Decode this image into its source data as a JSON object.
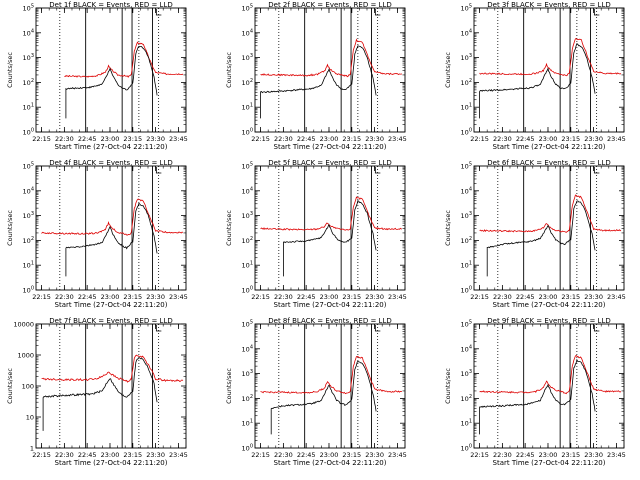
{
  "figure": {
    "background": "#ffffff",
    "colors": {
      "events": "#000000",
      "lld": "#dd0000",
      "axis": "#000000"
    }
  },
  "common": {
    "xlabel": "Start Time (27-Oct-04 22:11:20)",
    "ylabel": "Counts/sec",
    "xticks": [
      "22:15",
      "22:30",
      "22:45",
      "23:00",
      "23:15",
      "23:30",
      "23:45"
    ]
  },
  "chart_data": [
    {
      "type": "line",
      "title": "Det 1f BLACK = Events, RED = LLD",
      "ylabel": "Counts/sec",
      "xlabel": "Start Time (27-Oct-04 22:11:20)",
      "yscale": "log",
      "ylim": [
        1,
        100000
      ],
      "ytick_labels": [
        "10^0",
        "10^1",
        "10^2",
        "10^3",
        "10^4",
        "10^5"
      ],
      "xlim": [
        "22:11:20",
        "23:50:00"
      ],
      "series": [
        {
          "color": "red",
          "values_x": [
            "22:30",
            "22:45",
            "22:52",
            "22:57",
            "22:59",
            "23:01",
            "23:05",
            "23:08",
            "23:10",
            "23:12",
            "23:14",
            "23:16",
            "23:18",
            "23:22",
            "23:27",
            "23:30",
            "23:37",
            "23:48"
          ],
          "values_y": [
            180,
            170,
            190,
            260,
            450,
            320,
            200,
            190,
            180,
            170,
            200,
            1800,
            4000,
            3500,
            600,
            250,
            220,
            220
          ]
        },
        {
          "color": "black",
          "values_x": [
            "22:31",
            "22:40",
            "22:48",
            "22:55",
            "22:58",
            "23:00",
            "23:02",
            "23:05",
            "23:08",
            "23:11",
            "23:15",
            "23:17",
            "23:19",
            "23:22",
            "23:25",
            "23:29",
            "23:31"
          ],
          "values_y": [
            55,
            60,
            65,
            85,
            200,
            340,
            180,
            85,
            60,
            50,
            90,
            1500,
            3000,
            2500,
            1200,
            160,
            30
          ]
        }
      ]
    },
    {
      "type": "line",
      "title": "Det 2f BLACK = Events, RED = LLD",
      "ylabel": "Counts/sec",
      "xlabel": "Start Time (27-Oct-04 22:11:20)",
      "yscale": "log",
      "ylim": [
        1,
        100000
      ],
      "ytick_labels": [
        "10^0",
        "10^1",
        "10^2",
        "10^3",
        "10^4",
        "10^5"
      ],
      "xlim": [
        "22:11:20",
        "23:50:00"
      ],
      "series": [
        {
          "color": "red",
          "values_x": [
            "22:15",
            "22:30",
            "22:45",
            "22:52",
            "22:57",
            "22:59",
            "23:01",
            "23:05",
            "23:08",
            "23:10",
            "23:12",
            "23:14",
            "23:16",
            "23:18",
            "23:22",
            "23:27",
            "23:30",
            "23:37",
            "23:48"
          ],
          "values_y": [
            210,
            200,
            190,
            210,
            280,
            500,
            330,
            220,
            200,
            190,
            180,
            210,
            2000,
            5000,
            4000,
            700,
            260,
            220,
            220
          ]
        },
        {
          "color": "black",
          "values_x": [
            "22:15",
            "22:30",
            "22:48",
            "22:55",
            "22:58",
            "23:00",
            "23:02",
            "23:05",
            "23:08",
            "23:11",
            "23:15",
            "23:17",
            "23:19",
            "23:22",
            "23:25",
            "23:29",
            "23:31"
          ],
          "values_y": [
            40,
            45,
            55,
            75,
            190,
            330,
            170,
            80,
            55,
            50,
            85,
            1400,
            3000,
            2500,
            1100,
            150,
            30
          ]
        }
      ]
    },
    {
      "type": "line",
      "title": "Det 3f BLACK = Events, RED = LLD",
      "ylabel": "Counts/sec",
      "xlabel": "Start Time (27-Oct-04 22:11:20)",
      "yscale": "log",
      "ylim": [
        1,
        100000
      ],
      "ytick_labels": [
        "10^0",
        "10^1",
        "10^2",
        "10^3",
        "10^4",
        "10^5"
      ],
      "xlim": [
        "22:11:20",
        "23:50:00"
      ],
      "series": [
        {
          "color": "red",
          "values_x": [
            "22:15",
            "22:30",
            "22:45",
            "22:52",
            "22:57",
            "22:59",
            "23:01",
            "23:05",
            "23:08",
            "23:10",
            "23:12",
            "23:14",
            "23:16",
            "23:18",
            "23:22",
            "23:27",
            "23:30",
            "23:37",
            "23:48"
          ],
          "values_y": [
            230,
            220,
            215,
            230,
            300,
            520,
            350,
            230,
            215,
            200,
            190,
            230,
            2200,
            6000,
            5000,
            800,
            280,
            230,
            230
          ]
        },
        {
          "color": "black",
          "values_x": [
            "22:15",
            "22:30",
            "22:48",
            "22:55",
            "22:58",
            "23:00",
            "23:02",
            "23:05",
            "23:08",
            "23:11",
            "23:15",
            "23:17",
            "23:19",
            "23:22",
            "23:25",
            "23:29",
            "23:31"
          ],
          "values_y": [
            45,
            50,
            60,
            80,
            200,
            350,
            180,
            85,
            60,
            55,
            90,
            1600,
            3500,
            2800,
            1200,
            160,
            35
          ]
        }
      ]
    },
    {
      "type": "line",
      "title": "Det 4f BLACK = Events, RED = LLD",
      "ylabel": "Counts/sec",
      "xlabel": "Start Time (27-Oct-04 22:11:20)",
      "yscale": "log",
      "ylim": [
        1,
        100000
      ],
      "ytick_labels": [
        "10^0",
        "10^1",
        "10^2",
        "10^3",
        "10^4",
        "10^5"
      ],
      "xlim": [
        "22:11:20",
        "23:50:00"
      ],
      "series": [
        {
          "color": "red",
          "values_x": [
            "22:15",
            "22:30",
            "22:45",
            "22:52",
            "22:57",
            "22:59",
            "23:01",
            "23:05",
            "23:08",
            "23:10",
            "23:12",
            "23:14",
            "23:16",
            "23:18",
            "23:22",
            "23:27",
            "23:30",
            "23:37",
            "23:48"
          ],
          "values_y": [
            200,
            190,
            185,
            200,
            280,
            500,
            330,
            210,
            190,
            180,
            170,
            200,
            2000,
            4500,
            3800,
            650,
            250,
            210,
            210
          ]
        },
        {
          "color": "black",
          "values_x": [
            "22:31",
            "22:40",
            "22:48",
            "22:55",
            "22:58",
            "23:00",
            "23:02",
            "23:05",
            "23:08",
            "23:11",
            "23:15",
            "23:17",
            "23:19",
            "23:22",
            "23:25",
            "23:29",
            "23:31"
          ],
          "values_y": [
            50,
            55,
            65,
            80,
            200,
            340,
            180,
            85,
            60,
            50,
            90,
            1500,
            3000,
            2500,
            1100,
            150,
            30
          ]
        }
      ]
    },
    {
      "type": "line",
      "title": "Det 5f BLACK = Events, RED = LLD",
      "ylabel": "Counts/sec",
      "xlabel": "Start Time (27-Oct-04 22:11:20)",
      "yscale": "log",
      "ylim": [
        1,
        100000
      ],
      "ytick_labels": [
        "10^0",
        "10^1",
        "10^2",
        "10^3",
        "10^4",
        "10^5"
      ],
      "xlim": [
        "22:11:20",
        "23:50:00"
      ],
      "series": [
        {
          "color": "red",
          "values_x": [
            "22:15",
            "22:30",
            "22:45",
            "22:52",
            "22:57",
            "22:59",
            "23:01",
            "23:05",
            "23:08",
            "23:10",
            "23:12",
            "23:14",
            "23:16",
            "23:18",
            "23:22",
            "23:27",
            "23:30",
            "23:37",
            "23:48"
          ],
          "values_y": [
            300,
            280,
            270,
            290,
            360,
            520,
            380,
            300,
            280,
            270,
            260,
            300,
            2200,
            5500,
            4500,
            800,
            320,
            290,
            290
          ]
        },
        {
          "color": "black",
          "values_x": [
            "22:30",
            "22:40",
            "22:48",
            "22:55",
            "22:58",
            "23:00",
            "23:02",
            "23:05",
            "23:08",
            "23:11",
            "23:15",
            "23:17",
            "23:19",
            "23:22",
            "23:25",
            "23:29",
            "23:31"
          ],
          "values_y": [
            85,
            90,
            100,
            130,
            260,
            420,
            220,
            120,
            90,
            85,
            120,
            1700,
            3800,
            3000,
            1300,
            180,
            40
          ]
        }
      ]
    },
    {
      "type": "line",
      "title": "Det 6f BLACK = Events, RED = LLD",
      "ylabel": "Counts/sec",
      "xlabel": "Start Time (27-Oct-04 22:11:20)",
      "yscale": "log",
      "ylim": [
        1,
        100000
      ],
      "ytick_labels": [
        "10^0",
        "10^1",
        "10^2",
        "10^3",
        "10^4",
        "10^5"
      ],
      "xlim": [
        "22:11:20",
        "23:50:00"
      ],
      "series": [
        {
          "color": "red",
          "values_x": [
            "22:15",
            "22:30",
            "22:45",
            "22:52",
            "22:57",
            "22:59",
            "23:01",
            "23:05",
            "23:08",
            "23:10",
            "23:12",
            "23:14",
            "23:16",
            "23:18",
            "23:22",
            "23:27",
            "23:30",
            "23:37",
            "23:48"
          ],
          "values_y": [
            250,
            240,
            230,
            250,
            320,
            500,
            350,
            250,
            240,
            230,
            220,
            260,
            2500,
            6500,
            5500,
            900,
            280,
            250,
            260
          ]
        },
        {
          "color": "black",
          "values_x": [
            "22:20",
            "22:30",
            "22:48",
            "22:55",
            "22:58",
            "23:00",
            "23:02",
            "23:05",
            "23:08",
            "23:11",
            "23:15",
            "23:17",
            "23:19",
            "23:22",
            "23:25",
            "23:29",
            "23:31"
          ],
          "values_y": [
            50,
            70,
            90,
            120,
            240,
            400,
            210,
            110,
            80,
            70,
            110,
            1800,
            4000,
            3200,
            1300,
            180,
            40
          ]
        }
      ]
    },
    {
      "type": "line",
      "title": "Det 7f BLACK = Events, RED = LLD",
      "ylabel": "Counts/sec",
      "xlabel": "Start Time (27-Oct-04 22:11:20)",
      "yscale": "log",
      "ylim": [
        1,
        10000
      ],
      "ytick_labels": [
        "1",
        "10",
        "100",
        "1000",
        "10000"
      ],
      "xlim": [
        "22:11:20",
        "23:50:00"
      ],
      "series": [
        {
          "color": "red",
          "values_x": [
            "22:15",
            "22:30",
            "22:45",
            "22:52",
            "22:57",
            "22:59",
            "23:01",
            "23:05",
            "23:08",
            "23:10",
            "23:12",
            "23:14",
            "23:16",
            "23:18",
            "23:22",
            "23:27",
            "23:30",
            "23:37",
            "23:48"
          ],
          "values_y": [
            170,
            160,
            160,
            175,
            230,
            290,
            240,
            180,
            165,
            150,
            140,
            165,
            800,
            1000,
            850,
            350,
            170,
            150,
            150
          ]
        },
        {
          "color": "black",
          "values_x": [
            "22:16",
            "22:30",
            "22:48",
            "22:55",
            "22:58",
            "23:00",
            "23:02",
            "23:05",
            "23:08",
            "23:11",
            "23:15",
            "23:17",
            "23:19",
            "23:22",
            "23:25",
            "23:29",
            "23:31"
          ],
          "values_y": [
            45,
            50,
            55,
            70,
            130,
            180,
            120,
            70,
            50,
            45,
            70,
            600,
            850,
            700,
            400,
            120,
            30
          ]
        }
      ]
    },
    {
      "type": "line",
      "title": "Det 8f BLACK = Events, RED = LLD",
      "ylabel": "Counts/sec",
      "xlabel": "Start Time (27-Oct-04 22:11:20)",
      "yscale": "log",
      "ylim": [
        1,
        100000
      ],
      "ytick_labels": [
        "10^0",
        "10^1",
        "10^2",
        "10^3",
        "10^4",
        "10^5"
      ],
      "xlim": [
        "22:11:20",
        "23:50:00"
      ],
      "series": [
        {
          "color": "red",
          "values_x": [
            "22:15",
            "22:30",
            "22:45",
            "22:52",
            "22:57",
            "22:59",
            "23:01",
            "23:05",
            "23:08",
            "23:10",
            "23:12",
            "23:14",
            "23:16",
            "23:18",
            "23:22",
            "23:27",
            "23:30",
            "23:37",
            "23:48"
          ],
          "values_y": [
            180,
            175,
            170,
            185,
            260,
            480,
            320,
            200,
            180,
            170,
            160,
            190,
            2000,
            5000,
            4200,
            700,
            240,
            190,
            190
          ]
        },
        {
          "color": "black",
          "values_x": [
            "22:22",
            "22:30",
            "22:48",
            "22:55",
            "22:58",
            "23:00",
            "23:02",
            "23:05",
            "23:08",
            "23:11",
            "23:15",
            "23:17",
            "23:19",
            "23:22",
            "23:25",
            "23:29",
            "23:31"
          ],
          "values_y": [
            40,
            50,
            60,
            80,
            200,
            340,
            180,
            85,
            60,
            55,
            90,
            1500,
            3200,
            2600,
            1100,
            150,
            30
          ]
        }
      ]
    },
    {
      "type": "line",
      "title": "Det 9f BLACK = Events, RED = LLD",
      "ylabel": "Counts/sec",
      "xlabel": "Start Time (27-Oct-04 22:11:20)",
      "yscale": "log",
      "ylim": [
        1,
        100000
      ],
      "ytick_labels": [
        "10^0",
        "10^1",
        "10^2",
        "10^3",
        "10^4",
        "10^5"
      ],
      "xlim": [
        "22:11:20",
        "23:50:00"
      ],
      "series": [
        {
          "color": "red",
          "values_x": [
            "22:15",
            "22:30",
            "22:45",
            "22:52",
            "22:57",
            "22:59",
            "23:01",
            "23:05",
            "23:08",
            "23:10",
            "23:12",
            "23:14",
            "23:16",
            "23:18",
            "23:22",
            "23:27",
            "23:30",
            "23:37",
            "23:48"
          ],
          "values_y": [
            190,
            180,
            175,
            190,
            270,
            500,
            330,
            210,
            190,
            175,
            165,
            190,
            2100,
            5200,
            4300,
            700,
            240,
            190,
            190
          ]
        },
        {
          "color": "black",
          "values_x": [
            "22:15",
            "22:30",
            "22:48",
            "22:55",
            "22:58",
            "23:00",
            "23:02",
            "23:05",
            "23:08",
            "23:11",
            "23:15",
            "23:17",
            "23:19",
            "23:22",
            "23:25",
            "23:29",
            "23:31"
          ],
          "values_y": [
            45,
            50,
            60,
            85,
            210,
            360,
            180,
            85,
            60,
            55,
            90,
            1600,
            3400,
            2700,
            1200,
            160,
            30
          ]
        }
      ]
    }
  ]
}
